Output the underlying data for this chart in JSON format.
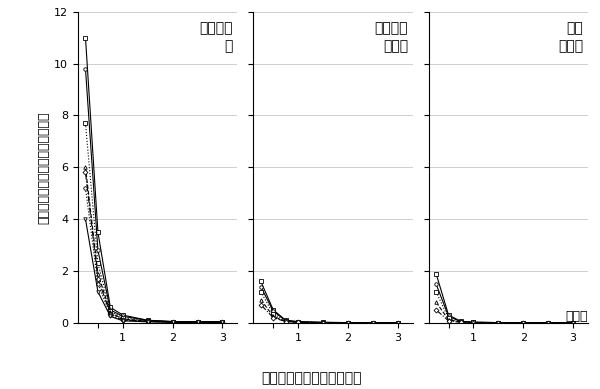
{
  "panels": [
    {
      "title": "歯列崩壊\n群",
      "curves": [
        {
          "style": "solid",
          "marker": "s",
          "x": [
            0.25,
            0.5,
            0.75,
            1.0,
            1.5,
            2.0,
            2.5,
            3.0
          ],
          "y": [
            11.0,
            3.5,
            0.6,
            0.3,
            0.1,
            0.05,
            0.05,
            0.05
          ]
        },
        {
          "style": "solid",
          "marker": "o",
          "x": [
            0.25,
            0.5,
            0.75,
            1.0,
            1.5,
            2.0,
            2.5,
            3.0
          ],
          "y": [
            9.8,
            2.8,
            0.5,
            0.25,
            0.1,
            0.05,
            0.05,
            0.05
          ]
        },
        {
          "style": "dotted",
          "marker": "s",
          "x": [
            0.25,
            0.5,
            0.75,
            1.0,
            1.5,
            2.0,
            2.5,
            3.0
          ],
          "y": [
            7.7,
            2.3,
            0.45,
            0.2,
            0.08,
            0.04,
            0.04,
            0.04
          ]
        },
        {
          "style": "dashed",
          "marker": "^",
          "x": [
            0.25,
            0.5,
            0.75,
            1.0,
            1.5,
            2.0,
            2.5,
            3.0
          ],
          "y": [
            6.0,
            1.9,
            0.4,
            0.15,
            0.07,
            0.04,
            0.03,
            0.03
          ]
        },
        {
          "style": "dashdot",
          "marker": "D",
          "x": [
            0.25,
            0.5,
            0.75,
            1.0,
            1.5,
            2.0,
            2.5,
            3.0
          ],
          "y": [
            5.8,
            1.7,
            0.35,
            0.12,
            0.06,
            0.03,
            0.03,
            0.03
          ]
        },
        {
          "style": "dotted",
          "marker": "o",
          "x": [
            0.25,
            0.5,
            0.75,
            1.0,
            1.5,
            2.0,
            2.5,
            3.0
          ],
          "y": [
            5.2,
            1.5,
            0.3,
            0.1,
            0.05,
            0.03,
            0.02,
            0.02
          ]
        },
        {
          "style": "solid",
          "marker": "v",
          "x": [
            0.25,
            0.5,
            0.75,
            1.0,
            1.5,
            2.0,
            2.5,
            3.0
          ],
          "y": [
            4.0,
            1.2,
            0.25,
            0.08,
            0.04,
            0.02,
            0.02,
            0.02
          ]
        }
      ]
    },
    {
      "title": "年齢適合\n対照群",
      "curves": [
        {
          "style": "solid",
          "marker": "s",
          "x": [
            0.25,
            0.5,
            0.75,
            1.0,
            1.5,
            2.0,
            2.5,
            3.0
          ],
          "y": [
            1.6,
            0.5,
            0.1,
            0.05,
            0.02,
            0.01,
            0.01,
            0.01
          ]
        },
        {
          "style": "solid",
          "marker": "o",
          "x": [
            0.25,
            0.5,
            0.75,
            1.0,
            1.5,
            2.0,
            2.5,
            3.0
          ],
          "y": [
            1.4,
            0.45,
            0.09,
            0.04,
            0.02,
            0.01,
            0.01,
            0.01
          ]
        },
        {
          "style": "dotted",
          "marker": "s",
          "x": [
            0.25,
            0.5,
            0.75,
            1.0,
            1.5,
            2.0,
            2.5,
            3.0
          ],
          "y": [
            1.2,
            0.35,
            0.08,
            0.03,
            0.01,
            0.01,
            0.01,
            0.01
          ]
        },
        {
          "style": "dashed",
          "marker": "^",
          "x": [
            0.25,
            0.5,
            0.75,
            1.0,
            1.5,
            2.0,
            2.5,
            3.0
          ],
          "y": [
            0.9,
            0.25,
            0.06,
            0.02,
            0.01,
            0.01,
            0.01,
            0.01
          ]
        },
        {
          "style": "dashdot",
          "marker": "D",
          "x": [
            0.25,
            0.5,
            0.75,
            1.0,
            1.5,
            2.0,
            2.5,
            3.0
          ],
          "y": [
            0.7,
            0.2,
            0.05,
            0.02,
            0.01,
            0.01,
            0.01,
            0.01
          ]
        }
      ]
    },
    {
      "title": "若年\n対照群",
      "curves": [
        {
          "style": "solid",
          "marker": "s",
          "x": [
            0.25,
            0.5,
            0.75,
            1.0,
            1.5,
            2.0,
            2.5,
            3.0
          ],
          "y": [
            1.9,
            0.3,
            0.06,
            0.03,
            0.01,
            0.01,
            0.01,
            0.01
          ]
        },
        {
          "style": "solid",
          "marker": "o",
          "x": [
            0.25,
            0.5,
            0.75,
            1.0,
            1.5,
            2.0,
            2.5,
            3.0
          ],
          "y": [
            1.5,
            0.25,
            0.05,
            0.02,
            0.01,
            0.01,
            0.01,
            0.01
          ]
        },
        {
          "style": "dotted",
          "marker": "s",
          "x": [
            0.25,
            0.5,
            0.75,
            1.0,
            1.5,
            2.0,
            2.5,
            3.0
          ],
          "y": [
            1.2,
            0.18,
            0.04,
            0.02,
            0.01,
            0.01,
            0.01,
            0.01
          ]
        },
        {
          "style": "dashed",
          "marker": "^",
          "x": [
            0.25,
            0.5,
            0.75,
            1.0,
            1.5,
            2.0,
            2.5,
            3.0
          ],
          "y": [
            0.8,
            0.12,
            0.03,
            0.01,
            0.01,
            0.01,
            0.01,
            0.01
          ]
        },
        {
          "style": "dashdot",
          "marker": "D",
          "x": [
            0.25,
            0.5,
            0.75,
            1.0,
            1.5,
            2.0,
            2.5,
            3.0
          ],
          "y": [
            0.5,
            0.08,
            0.02,
            0.01,
            0.01,
            0.01,
            0.01,
            0.01
          ]
        }
      ]
    }
  ],
  "ylabel": "日中の咬みしめ回数（回／時間）",
  "xlabel": "個々の咬みしめの持続時間",
  "xlabel_unit": "（分）",
  "ylim": [
    0,
    12
  ],
  "yticks": [
    0,
    2,
    4,
    6,
    8,
    10,
    12
  ],
  "xlim": [
    0.1,
    3.3
  ],
  "xticks": [
    0.5,
    1,
    2,
    3
  ],
  "xticklabels": [
    "",
    "1",
    "2",
    "3"
  ],
  "line_color": "black",
  "title_fontsize": 10,
  "label_fontsize": 9,
  "tick_fontsize": 8
}
